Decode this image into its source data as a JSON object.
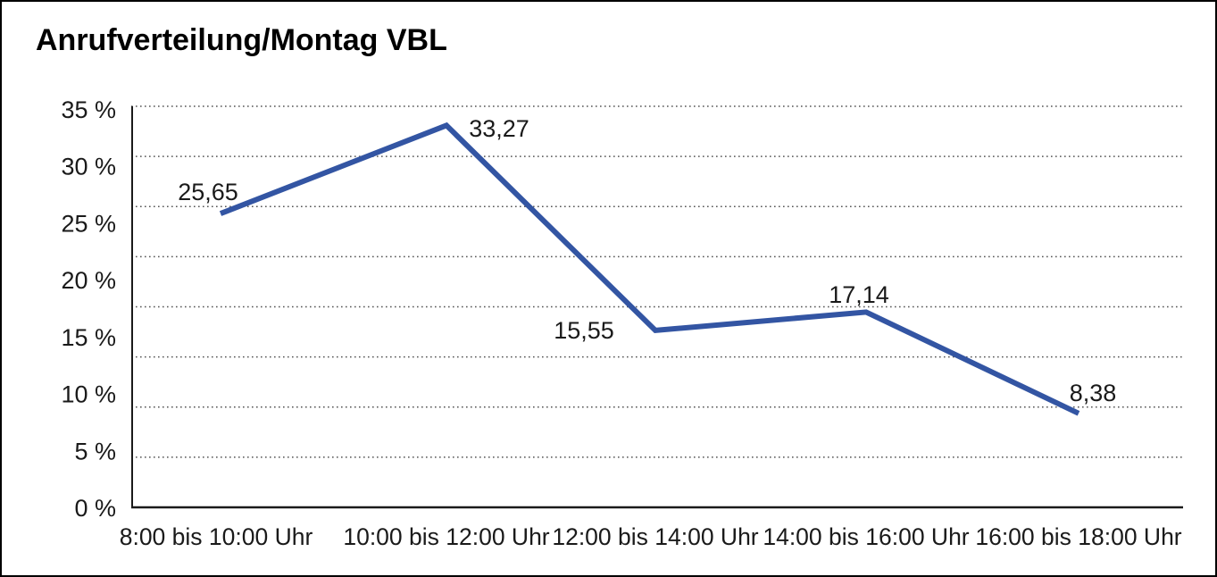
{
  "window": {
    "background_color": "#FFFFFF",
    "border_color": "#000000"
  },
  "chart_data": {
    "type": "line",
    "title": "Anrufverteilung/Montag VBL",
    "categories": [
      "8:00 bis 10:00 Uhr",
      "10:00 bis 12:00 Uhr",
      "12:00 bis 14:00 Uhr",
      "14:00 bis 16:00 Uhr",
      "16:00 bis 18:00 Uhr"
    ],
    "series": [
      {
        "name": "Anrufverteilung Montag VBL",
        "values": [
          25.65,
          33.27,
          15.55,
          17.14,
          8.38
        ],
        "value_labels": [
          "25,65",
          "33,27",
          "15,55",
          "17,14",
          "8,38"
        ]
      }
    ],
    "xlabel": "",
    "ylabel": "",
    "ylim": [
      0,
      35
    ],
    "yticks": [
      35,
      30,
      25,
      20,
      15,
      10,
      5,
      0
    ],
    "ytick_labels": [
      "35 %",
      "30 %",
      "25 %",
      "20 %",
      "15 %",
      "10 %",
      "5 %",
      "0 %"
    ],
    "grid": "horizontal-dotted",
    "legend_position": "none",
    "marker": "none",
    "line_color": "#3355A3",
    "axis_color": "#1A1A1A",
    "gridline_color": "#555555",
    "text_color": "#1A1A1A"
  }
}
